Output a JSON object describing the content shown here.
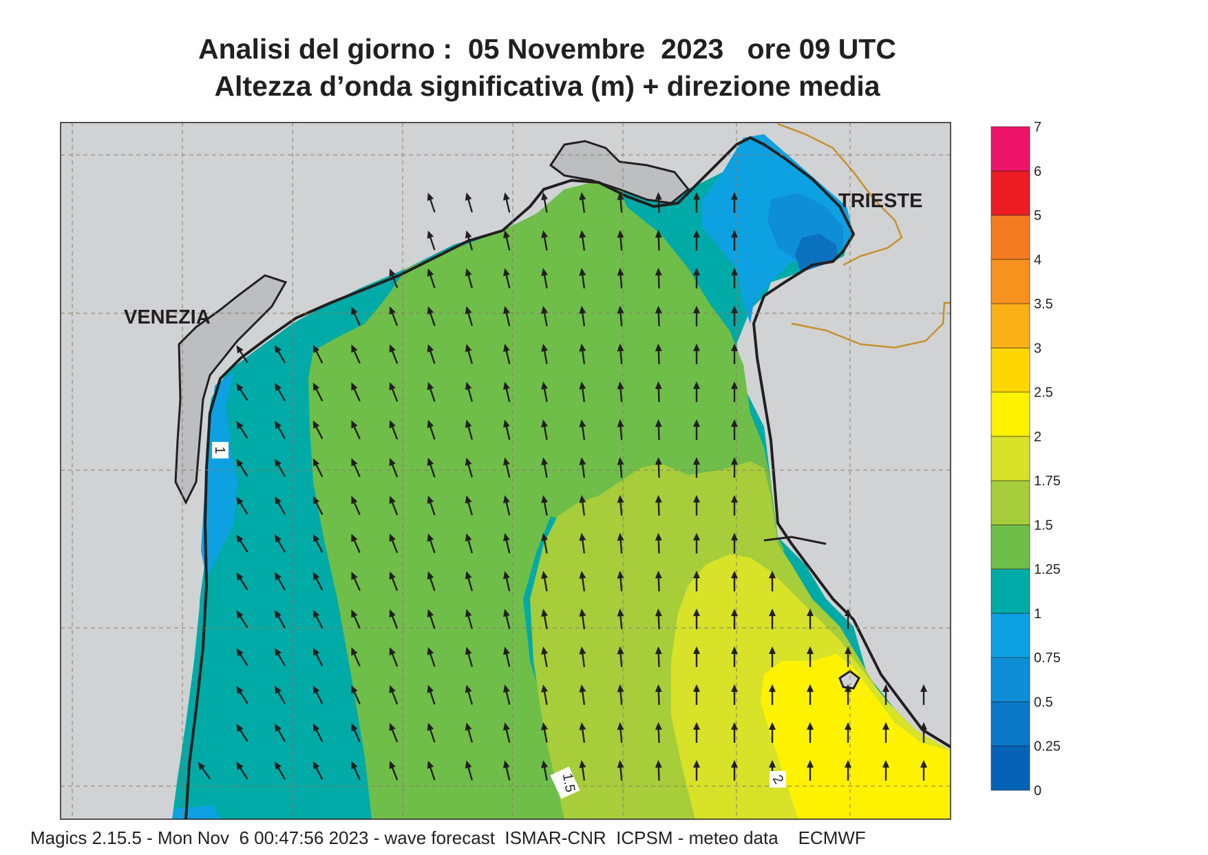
{
  "title": {
    "line1": "Analisi del giorno :  05 Novembre  2023   ore 09 UTC",
    "line2": "Altezza d’onda significativa (m) + direzione media"
  },
  "map": {
    "place_labels": {
      "venezia": "VENEZIA",
      "trieste": "TRIESTE"
    },
    "contour_labels": {
      "one": "1",
      "one_five": "1.5",
      "two": "2"
    },
    "colors": {
      "land": "#d1d2d4",
      "band_0_75_1": "#0da1e2",
      "band_1_1_25": "#00aaa6",
      "band_1_25_1_5": "#6fbe4a",
      "band_1_5_1_75": "#a7cd3a",
      "band_1_75_2": "#d7e228",
      "band_2_2_5": "#fff200",
      "band_0_5_0_75": "#0d8ed6",
      "band_0_25_0_5": "#0b70bd",
      "border": "#c8902a"
    }
  },
  "legend": {
    "levels": [
      "0",
      "0.25",
      "0.5",
      "0.75",
      "1",
      "1.25",
      "1.5",
      "1.75",
      "2",
      "2.5",
      "3",
      "3.5",
      "4",
      "5",
      "6",
      "7"
    ],
    "colors": [
      "#0462b7",
      "#0a77c7",
      "#0d8ed6",
      "#0da1e2",
      "#00aaa6",
      "#6fbe4a",
      "#a7cd3a",
      "#d7e228",
      "#fff200",
      "#ffd700",
      "#fbb018",
      "#f7921e",
      "#f47a20",
      "#ed1c24",
      "#ee1469"
    ]
  },
  "footer": "Magics 2.15.5 - Mon Nov  6 00:47:56 2023 - wave forecast  ISMAR-CNR  ICPSM - meteo data    ECMWF"
}
